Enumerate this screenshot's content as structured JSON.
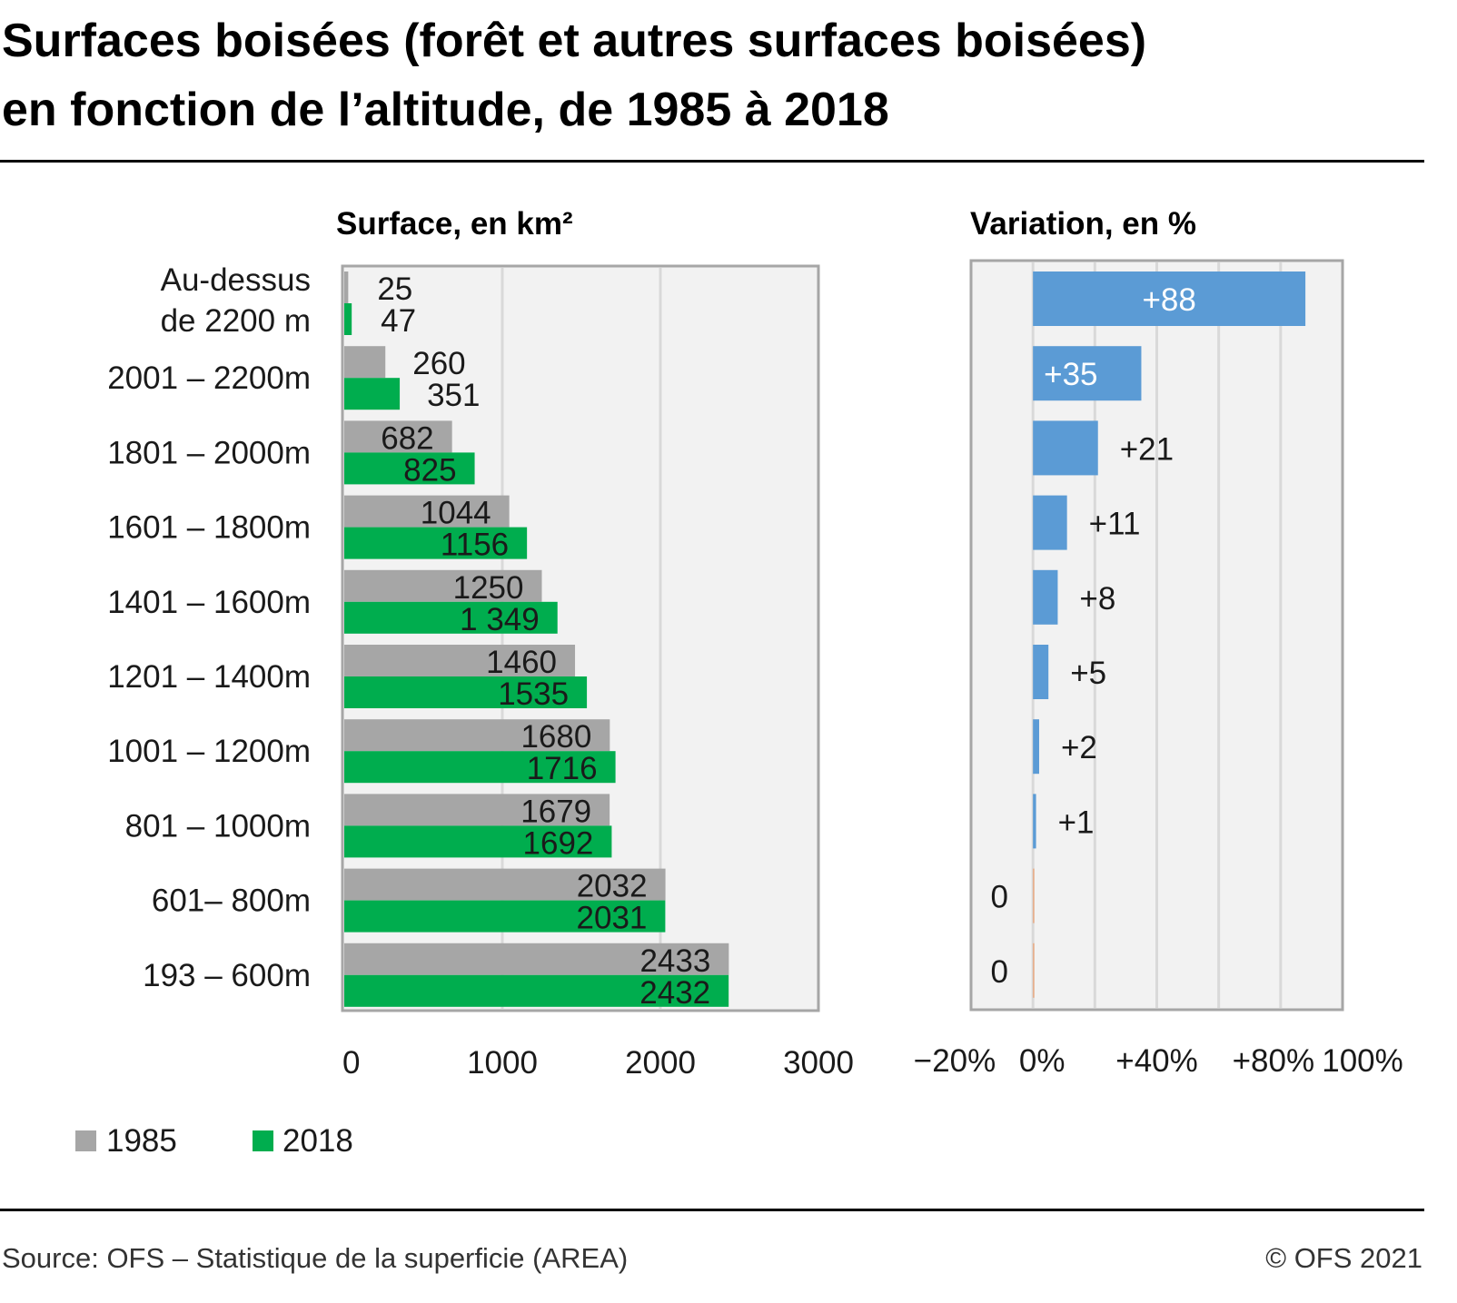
{
  "title_lines": [
    "Surfaces boisées (forêt et autres surfaces boisées)",
    "en fonction de l’altitude, de 1985 à 2018"
  ],
  "footer": {
    "source": "Source: OFS – Statistique de la superficie (AREA)",
    "copyright": "© OFS 2021"
  },
  "colors": {
    "1985": "#a6a6a6",
    "2018": "#00ad4e",
    "variation": "#5b9bd5",
    "zero": "#e8a77f",
    "plot_bg": "#f2f2f2",
    "grid": "#d9d9d9"
  },
  "chart_data": [
    {
      "type": "bar",
      "orientation": "horizontal",
      "title": "Surface, en km²",
      "categories": [
        [
          "Au-dessus",
          "de 2200 m"
        ],
        [
          "2001 – 2200m"
        ],
        [
          "1801 – 2000m"
        ],
        [
          "1601 – 1800m"
        ],
        [
          "1401 – 1600m"
        ],
        [
          "1201 – 1400m"
        ],
        [
          "1001 – 1200m"
        ],
        [
          "801 – 1000m"
        ],
        [
          "601– 800m"
        ],
        [
          "193 – 600m"
        ]
      ],
      "series": [
        {
          "name": "1985",
          "values": [
            25,
            260,
            682,
            1044,
            1250,
            1460,
            1680,
            1679,
            2032,
            2433
          ],
          "labels": [
            "25",
            "260",
            "682",
            "1044",
            "1250",
            "1460",
            "1680",
            "1679",
            "2032",
            "2433"
          ]
        },
        {
          "name": "2018",
          "values": [
            47,
            351,
            825,
            1156,
            1349,
            1535,
            1716,
            1692,
            2031,
            2432
          ],
          "labels": [
            "47",
            "351",
            "825",
            "1156",
            "1 349",
            "1535",
            "1716",
            "1692",
            "2031",
            "2432"
          ]
        }
      ],
      "xlim": [
        0,
        3000
      ],
      "xticks": [
        "0",
        "1000",
        "2000",
        "3000"
      ],
      "xtick_values": [
        0,
        1000,
        2000,
        3000
      ],
      "grid": true,
      "legend": "bottom-left"
    },
    {
      "type": "bar",
      "orientation": "horizontal",
      "title": "Variation, en %",
      "values": [
        88,
        35,
        21,
        11,
        8,
        5,
        2,
        1,
        0,
        0
      ],
      "labels": [
        "+88",
        "+35",
        "+21",
        "+11",
        "+8",
        "+5",
        "+2",
        "+1",
        "0",
        "0"
      ],
      "xlim": [
        -20,
        100
      ],
      "xticks": [
        "−20%",
        "0%",
        "+40%",
        "+80%",
        "100%"
      ],
      "xtick_values": [
        -20,
        0,
        40,
        80,
        100
      ],
      "grid": true
    }
  ]
}
